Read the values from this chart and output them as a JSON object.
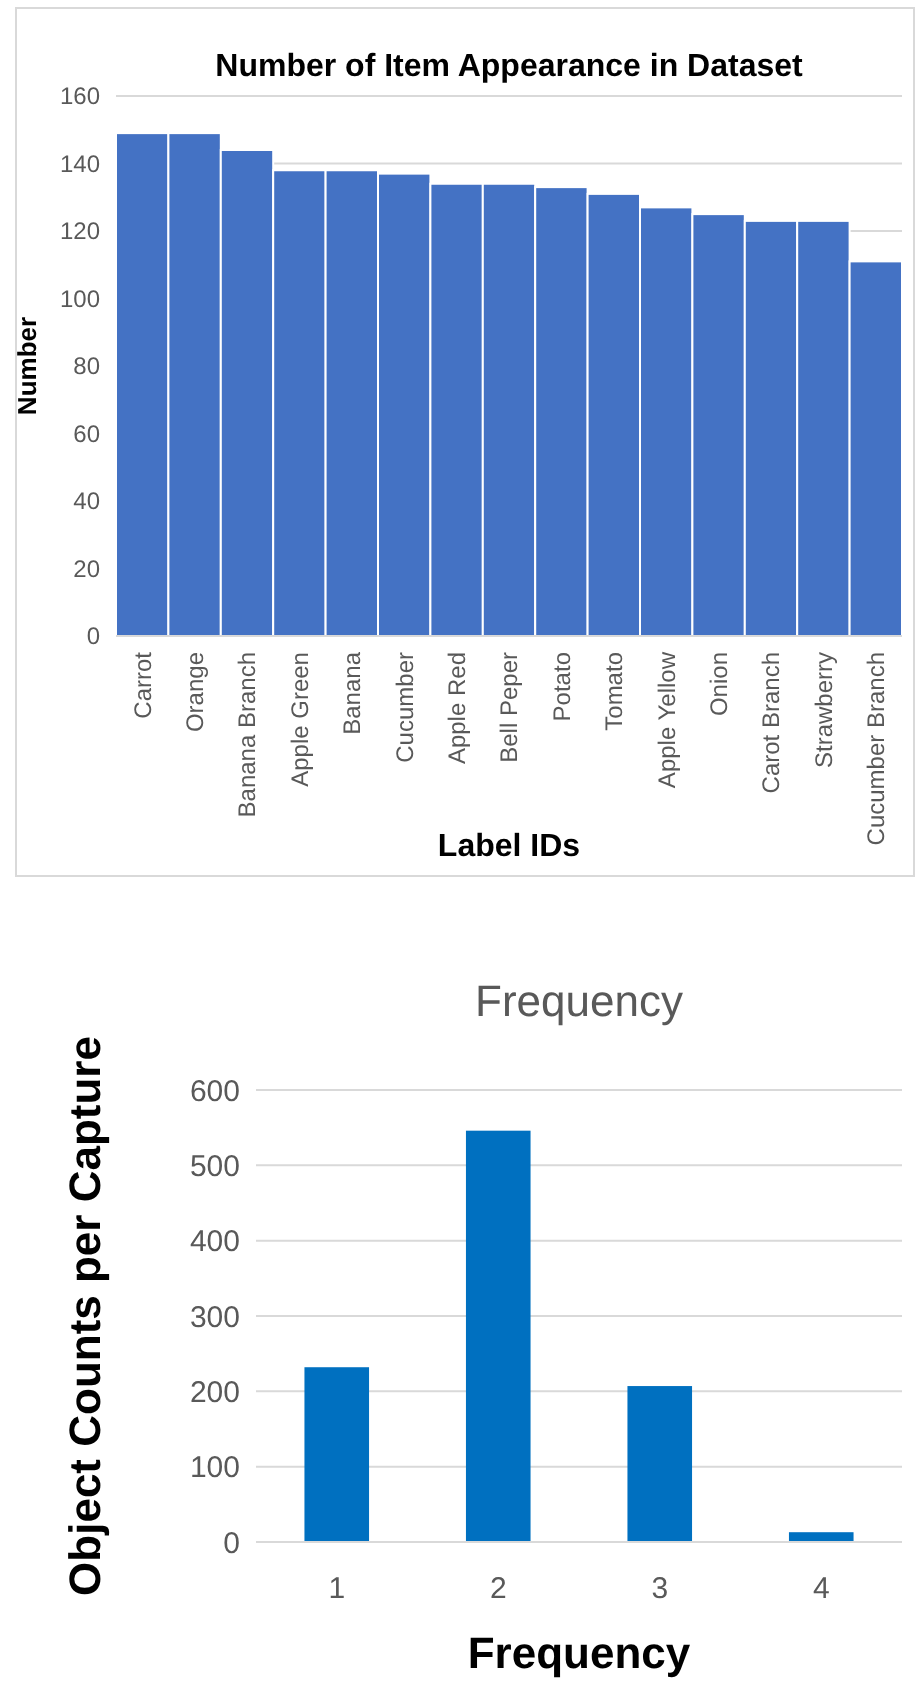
{
  "chart_data": [
    {
      "type": "bar",
      "title": "Number of Item Appearance in Dataset",
      "xlabel": "Label IDs",
      "ylabel": "Number",
      "categories": [
        "Carrot",
        "Orange",
        "Banana Branch",
        "Apple Green",
        "Banana",
        "Cucumber",
        "Apple Red",
        "Bell Peper",
        "Potato",
        "Tomato",
        "Apple Yellow",
        "Onion",
        "Carot Branch",
        "Strawberry",
        "Cucumber Branch"
      ],
      "values": [
        149,
        149,
        144,
        138,
        138,
        137,
        134,
        134,
        133,
        131,
        127,
        125,
        123,
        123,
        111
      ],
      "color": "#4472c4",
      "ylim": [
        0,
        160
      ],
      "yticks": [
        0,
        20,
        40,
        60,
        80,
        100,
        120,
        140,
        160
      ],
      "grid": "y"
    },
    {
      "type": "bar",
      "title": "Frequency",
      "xlabel": "Frequency",
      "ylabel": "Object Counts per Capture",
      "categories": [
        "1",
        "2",
        "3",
        "4"
      ],
      "values": [
        232,
        546,
        207,
        13
      ],
      "color": "#0070c0",
      "ylim": [
        0,
        600
      ],
      "yticks": [
        0,
        100,
        200,
        300,
        400,
        500,
        600
      ],
      "grid": "y"
    }
  ]
}
